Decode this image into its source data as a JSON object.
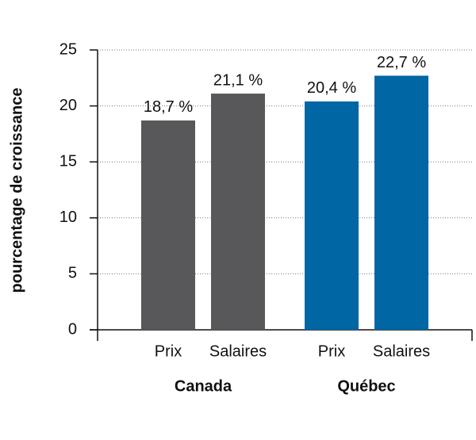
{
  "chart_data": {
    "type": "bar",
    "y_label": "pourcentage de croissance",
    "groups": [
      {
        "name": "Canada",
        "color": "#58585a",
        "categories": [
          "Prix",
          "Salaires"
        ],
        "values": [
          18.7,
          21.1
        ],
        "value_labels": [
          "18,7 %",
          "21,1 %"
        ]
      },
      {
        "name": "Québec",
        "color": "#0066a4",
        "categories": [
          "Prix",
          "Salaires"
        ],
        "values": [
          20.4,
          22.7
        ],
        "value_labels": [
          "20,4 %",
          "22,7 %"
        ]
      }
    ],
    "ylim": [
      0,
      25
    ],
    "yticks": [
      0,
      5,
      10,
      15,
      20,
      25
    ],
    "grid": true
  }
}
